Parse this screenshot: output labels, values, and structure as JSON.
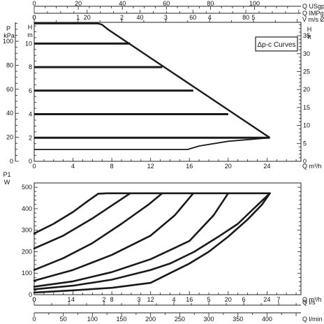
{
  "chart_data": [
    {
      "type": "line",
      "title": "",
      "legend_box": "Δp-c Curves",
      "axes": {
        "left_pressure": {
          "label_line1": "P",
          "label_line2": "kPa",
          "ticks": [
            0,
            20,
            40,
            60,
            80,
            100
          ]
        },
        "left_head": {
          "label_line1": "H",
          "label_line2": "m",
          "ticks": [
            0,
            2,
            4,
            6,
            8,
            10
          ],
          "ylim": [
            0,
            11.8
          ]
        },
        "right_head_ft": {
          "label_line1": "H",
          "label_line2": "ft",
          "ticks": [
            0,
            5,
            10,
            15,
            20,
            25,
            30,
            35
          ]
        },
        "bottom_flow_m3h": {
          "label": "Q m³/h",
          "ticks": [
            0,
            4,
            8,
            12,
            16,
            20,
            24
          ],
          "xlim": [
            0,
            27.5
          ]
        },
        "top_usgpm": {
          "label": "Q USgpm",
          "ticks": [
            0,
            20,
            40,
            60,
            80,
            100
          ]
        },
        "top_impgpm": {
          "label": "Q IMPgpm",
          "ticks": [
            0,
            20,
            40,
            60,
            80
          ]
        },
        "top_velocity": {
          "label": "V m/s Ø 40",
          "ticks": [
            0,
            1,
            2,
            3,
            4,
            5
          ]
        }
      },
      "series": [
        {
          "x": [
            0,
            6.6,
            7.0,
            7.6,
            24.3
          ],
          "y": [
            11.7,
            11.7,
            11.6,
            11.2,
            2.0
          ]
        },
        {
          "x": [
            0,
            9.9
          ],
          "y": [
            10.0,
            10.0
          ]
        },
        {
          "x": [
            0,
            13.2
          ],
          "y": [
            8.0,
            8.0
          ]
        },
        {
          "x": [
            0,
            16.4
          ],
          "y": [
            6.0,
            6.0
          ]
        },
        {
          "x": [
            0,
            20.0
          ],
          "y": [
            4.0,
            4.0
          ]
        },
        {
          "x": [
            0,
            24.3
          ],
          "y": [
            2.0,
            2.0
          ]
        },
        {
          "x": [
            0,
            15.8,
            17.0,
            20.0,
            24.3
          ],
          "y": [
            1.0,
            1.0,
            1.3,
            1.7,
            2.0
          ]
        }
      ]
    },
    {
      "type": "line",
      "title": "",
      "axes": {
        "left_power": {
          "label_line1": "P1",
          "label_line2": "W",
          "ticks": [
            0,
            100,
            200,
            300,
            400,
            500
          ],
          "ylim": [
            0,
            520
          ]
        },
        "bottom_flow_m3h": {
          "label": "Q m³/h",
          "ticks": [
            0,
            4,
            8,
            12,
            16,
            20,
            24
          ],
          "xlim": [
            0,
            27.5
          ]
        },
        "bottom_flow_ls": {
          "label": "Q l/s",
          "ticks": [
            0,
            1,
            2,
            3,
            4,
            5,
            6,
            7
          ]
        },
        "bottom_flow_lmin": {
          "label": "Q l/min",
          "ticks": [
            0,
            50,
            100,
            150,
            200,
            250,
            300,
            350,
            400
          ]
        }
      },
      "series": [
        {
          "x": [
            0,
            2,
            4,
            5.5,
            6.6,
            7.5,
            24.3
          ],
          "y": [
            285,
            330,
            385,
            435,
            470,
            472,
            472
          ]
        },
        {
          "x": [
            0,
            3,
            6,
            8.5,
            9.9
          ],
          "y": [
            215,
            275,
            355,
            430,
            472
          ]
        },
        {
          "x": [
            0,
            3,
            6,
            9,
            11.8,
            13.2
          ],
          "y": [
            115,
            170,
            240,
            330,
            420,
            472
          ]
        },
        {
          "x": [
            0,
            4,
            8,
            12,
            14.5,
            16.4
          ],
          "y": [
            65,
            115,
            185,
            275,
            370,
            472
          ]
        },
        {
          "x": [
            0,
            4,
            8,
            12,
            16,
            18.5,
            20.0
          ],
          "y": [
            37,
            62,
            105,
            165,
            250,
            370,
            472
          ]
        },
        {
          "x": [
            0,
            4,
            8,
            12,
            14,
            16.5,
            19,
            21,
            22.5,
            24.3
          ],
          "y": [
            25,
            42,
            70,
            115,
            145,
            200,
            270,
            330,
            395,
            472
          ]
        },
        {
          "x": [
            0,
            4,
            8,
            12,
            14,
            16,
            18,
            20,
            22,
            23.5,
            24.3
          ],
          "y": [
            10,
            20,
            32,
            55,
            100,
            145,
            200,
            270,
            350,
            420,
            472
          ]
        }
      ]
    }
  ]
}
